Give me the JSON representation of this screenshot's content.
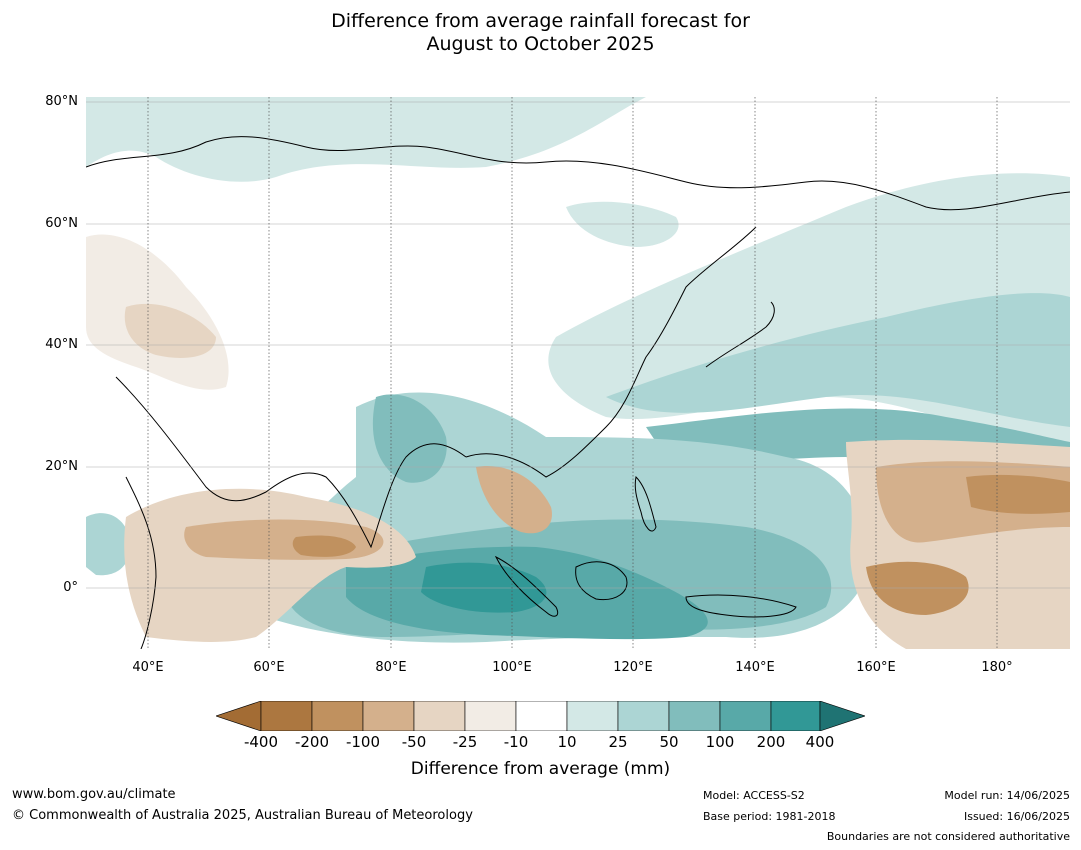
{
  "title": {
    "line1": "Difference from average rainfall forecast for",
    "line2": "August to October 2025"
  },
  "map": {
    "lat_labels": [
      "80°N",
      "60°N",
      "40°N",
      "20°N",
      "0°"
    ],
    "lon_labels": [
      "40°E",
      "60°E",
      "80°E",
      "100°E",
      "120°E",
      "140°E",
      "160°E",
      "180°"
    ],
    "colors": {
      "ocean": "#ffffff",
      "coast": "#000000",
      "border": "#888888",
      "grid": "#aaaaaa"
    }
  },
  "legend": {
    "ticks": [
      "-400",
      "-200",
      "-100",
      "-50",
      "-25",
      "-10",
      "10",
      "25",
      "50",
      "100",
      "200",
      "400"
    ],
    "colors": [
      "#a36c34",
      "#ac7740",
      "#c0915f",
      "#d4b08c",
      "#e6d5c3",
      "#f2ece5",
      "#ffffff",
      "#d3e8e6",
      "#acd5d4",
      "#81bdbc",
      "#58a9a8",
      "#319896",
      "#1f7373"
    ],
    "title": "Difference from average (mm)"
  },
  "footer": {
    "website": "www.bom.gov.au/climate",
    "copyright": "© Commonwealth of Australia 2025, Australian Bureau of Meteorology",
    "model": "Model: ACCESS-S2",
    "base_period": "Base period: 1981-2018",
    "model_run": "Model run: 14/06/2025",
    "issued": "Issued: 16/06/2025",
    "boundaries": "Boundaries are not considered authoritative"
  }
}
